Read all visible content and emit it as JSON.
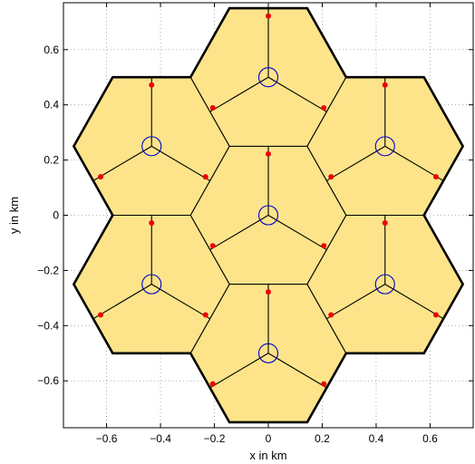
{
  "chart_data": {
    "type": "scatter",
    "title": "",
    "xlabel": "x in km",
    "ylabel": "y in km",
    "xlim": [
      -0.76,
      0.76
    ],
    "ylim": [
      -0.77,
      0.77
    ],
    "xticks": [
      -0.6,
      -0.4,
      -0.2,
      0,
      0.2,
      0.4,
      0.6
    ],
    "yticks": [
      -0.6,
      -0.4,
      -0.2,
      0,
      0.2,
      0.4,
      0.6
    ],
    "xtick_labels": [
      "−0.6",
      "−0.4",
      "−0.2",
      "0",
      "0.2",
      "0.4",
      "0.6"
    ],
    "ytick_labels": [
      "−0.6",
      "−0.4",
      "−0.2",
      "0",
      "0.2",
      "0.4",
      "0.6"
    ],
    "grid": "dotted",
    "cell_radius_km": 0.2887,
    "colors": {
      "cell_fill": "#fde48a",
      "cell_outline": "#000000",
      "site_marker": "#0000cc",
      "user_point": "#ee0000"
    },
    "base_stations": [
      {
        "x": 0,
        "y": 0
      },
      {
        "x": 0,
        "y": 0.5
      },
      {
        "x": 0,
        "y": -0.5
      },
      {
        "x": 0.433,
        "y": 0.25
      },
      {
        "x": 0.433,
        "y": -0.25
      },
      {
        "x": -0.433,
        "y": 0.25
      },
      {
        "x": -0.433,
        "y": -0.25
      }
    ],
    "sector_directions_deg": [
      90,
      210,
      330
    ],
    "user_points": [
      {
        "x": 0,
        "y": 0.722
      },
      {
        "x": -0.206,
        "y": 0.389
      },
      {
        "x": 0.206,
        "y": 0.389
      },
      {
        "x": 0,
        "y": 0.222
      },
      {
        "x": -0.206,
        "y": -0.111
      },
      {
        "x": 0.206,
        "y": -0.111
      },
      {
        "x": 0,
        "y": -0.278
      },
      {
        "x": -0.206,
        "y": -0.611
      },
      {
        "x": 0.206,
        "y": -0.611
      },
      {
        "x": -0.433,
        "y": 0.472
      },
      {
        "x": -0.622,
        "y": 0.139
      },
      {
        "x": -0.233,
        "y": 0.139
      },
      {
        "x": -0.433,
        "y": -0.028
      },
      {
        "x": -0.622,
        "y": -0.361
      },
      {
        "x": -0.233,
        "y": -0.361
      },
      {
        "x": 0.433,
        "y": 0.472
      },
      {
        "x": 0.233,
        "y": 0.139
      },
      {
        "x": 0.622,
        "y": 0.139
      },
      {
        "x": 0.433,
        "y": -0.028
      },
      {
        "x": 0.233,
        "y": -0.361
      },
      {
        "x": 0.622,
        "y": -0.361
      }
    ]
  }
}
